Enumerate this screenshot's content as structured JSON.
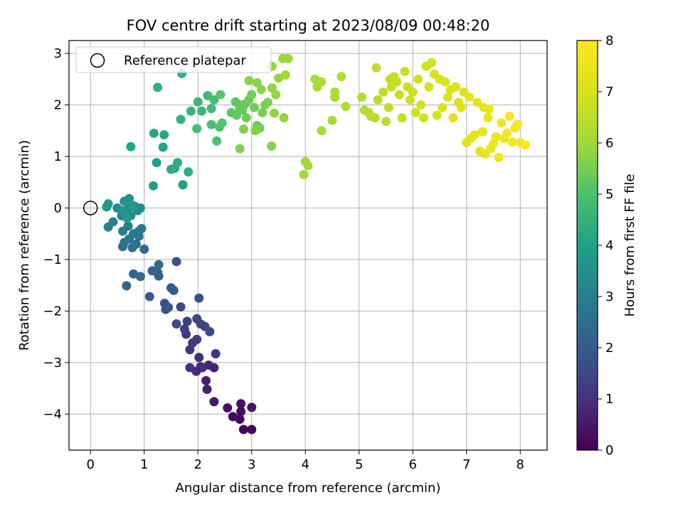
{
  "chart_data": {
    "type": "scatter",
    "title": "FOV centre drift starting at 2023/08/09 00:48:20",
    "xlabel": "Angular distance from reference (arcmin)",
    "ylabel": "Rotation from reference (arcmin)",
    "xlim": [
      -0.4,
      8.5
    ],
    "ylim": [
      -4.7,
      3.25
    ],
    "xticks": [
      0,
      1,
      2,
      3,
      4,
      5,
      6,
      7,
      8
    ],
    "xtick_labels": [
      "0",
      "1",
      "2",
      "3",
      "4",
      "5",
      "6",
      "7",
      "8"
    ],
    "yticks": [
      -4,
      -3,
      -2,
      -1,
      0,
      1,
      2,
      3
    ],
    "ytick_labels": [
      "−4",
      "−3",
      "−2",
      "−1",
      "0",
      "1",
      "2",
      "3"
    ],
    "grid": true,
    "legend": {
      "placement": "top-left",
      "entries": [
        "Reference platepar"
      ]
    },
    "colorbar": {
      "label": "Hours from first FF file",
      "range": [
        0,
        8
      ],
      "ticks": [
        0,
        1,
        2,
        3,
        4,
        5,
        6,
        7,
        8
      ],
      "tick_labels": [
        "0",
        "1",
        "2",
        "3",
        "4",
        "5",
        "6",
        "7",
        "8"
      ],
      "colormap": "viridis"
    },
    "reference_point": {
      "x": 0,
      "y": 0
    },
    "points": [
      {
        "x": 3.0,
        "y": -4.3,
        "h": 0.05
      },
      {
        "x": 2.85,
        "y": -4.3,
        "h": 0.1
      },
      {
        "x": 2.78,
        "y": -4.1,
        "h": 0.15
      },
      {
        "x": 2.65,
        "y": -4.05,
        "h": 0.2
      },
      {
        "x": 2.8,
        "y": -3.95,
        "h": 0.25
      },
      {
        "x": 2.8,
        "y": -3.8,
        "h": 0.3
      },
      {
        "x": 2.55,
        "y": -3.88,
        "h": 0.35
      },
      {
        "x": 3.0,
        "y": -3.87,
        "h": 0.4
      },
      {
        "x": 2.3,
        "y": -3.76,
        "h": 0.5
      },
      {
        "x": 2.17,
        "y": -3.52,
        "h": 0.6
      },
      {
        "x": 2.15,
        "y": -3.35,
        "h": 0.65
      },
      {
        "x": 2.3,
        "y": -3.1,
        "h": 0.7
      },
      {
        "x": 2.2,
        "y": -3.05,
        "h": 0.75
      },
      {
        "x": 2.08,
        "y": -3.1,
        "h": 0.8
      },
      {
        "x": 1.97,
        "y": -3.17,
        "h": 0.85
      },
      {
        "x": 2.05,
        "y": -3.08,
        "h": 0.9
      },
      {
        "x": 2.02,
        "y": -2.9,
        "h": 0.95
      },
      {
        "x": 1.85,
        "y": -3.1,
        "h": 1.0
      },
      {
        "x": 2.33,
        "y": -2.83,
        "h": 1.05
      },
      {
        "x": 1.85,
        "y": -2.75,
        "h": 1.1
      },
      {
        "x": 1.9,
        "y": -2.62,
        "h": 1.15
      },
      {
        "x": 1.98,
        "y": -2.55,
        "h": 1.2
      },
      {
        "x": 1.78,
        "y": -2.45,
        "h": 1.25
      },
      {
        "x": 1.75,
        "y": -2.35,
        "h": 1.3
      },
      {
        "x": 1.8,
        "y": -2.2,
        "h": 1.35
      },
      {
        "x": 1.98,
        "y": -2.15,
        "h": 1.4
      },
      {
        "x": 2.05,
        "y": -2.25,
        "h": 1.45
      },
      {
        "x": 2.13,
        "y": -2.3,
        "h": 1.5
      },
      {
        "x": 2.22,
        "y": -2.4,
        "h": 1.55
      },
      {
        "x": 1.6,
        "y": -2.25,
        "h": 1.6
      },
      {
        "x": 1.68,
        "y": -1.92,
        "h": 1.65
      },
      {
        "x": 2.02,
        "y": -1.75,
        "h": 1.7
      },
      {
        "x": 1.6,
        "y": -1.04,
        "h": 1.75
      },
      {
        "x": 1.38,
        "y": -1.85,
        "h": 1.8
      },
      {
        "x": 1.4,
        "y": -1.97,
        "h": 1.85
      },
      {
        "x": 1.45,
        "y": -1.93,
        "h": 1.9
      },
      {
        "x": 1.5,
        "y": -1.55,
        "h": 1.95
      },
      {
        "x": 1.55,
        "y": -1.6,
        "h": 2.0
      },
      {
        "x": 1.1,
        "y": -1.72,
        "h": 2.05
      },
      {
        "x": 1.15,
        "y": -1.22,
        "h": 2.1
      },
      {
        "x": 1.25,
        "y": -1.25,
        "h": 2.15
      },
      {
        "x": 1.27,
        "y": -1.32,
        "h": 2.2
      },
      {
        "x": 0.67,
        "y": -1.51,
        "h": 2.25
      },
      {
        "x": 0.8,
        "y": -1.28,
        "h": 2.3
      },
      {
        "x": 0.93,
        "y": -1.33,
        "h": 2.35
      },
      {
        "x": 1.27,
        "y": -1.1,
        "h": 2.4
      },
      {
        "x": 1.0,
        "y": -0.8,
        "h": 2.45
      },
      {
        "x": 0.6,
        "y": -0.75,
        "h": 2.5
      },
      {
        "x": 0.78,
        "y": -0.77,
        "h": 2.55
      },
      {
        "x": 0.85,
        "y": -0.7,
        "h": 2.6
      },
      {
        "x": 0.63,
        "y": -0.67,
        "h": 2.65
      },
      {
        "x": 0.72,
        "y": -0.6,
        "h": 2.7
      },
      {
        "x": 0.9,
        "y": -0.55,
        "h": 2.75
      },
      {
        "x": 0.8,
        "y": -0.5,
        "h": 2.8
      },
      {
        "x": 0.9,
        "y": -0.45,
        "h": 2.85
      },
      {
        "x": 0.95,
        "y": -0.4,
        "h": 2.9
      },
      {
        "x": 0.6,
        "y": -0.45,
        "h": 2.95
      },
      {
        "x": 0.7,
        "y": -0.35,
        "h": 3.0
      },
      {
        "x": 0.42,
        "y": -0.27,
        "h": 3.05
      },
      {
        "x": 0.33,
        "y": -0.37,
        "h": 3.1
      },
      {
        "x": 0.58,
        "y": -0.15,
        "h": 3.15
      },
      {
        "x": 0.75,
        "y": -0.15,
        "h": 3.2
      },
      {
        "x": 0.5,
        "y": 0.0,
        "h": 3.25
      },
      {
        "x": 0.72,
        "y": 0.0,
        "h": 3.3
      },
      {
        "x": 0.83,
        "y": 0.03,
        "h": 3.35
      },
      {
        "x": 0.88,
        "y": -0.05,
        "h": 3.4
      },
      {
        "x": 0.93,
        "y": 0.0,
        "h": 3.45
      },
      {
        "x": 0.63,
        "y": 0.13,
        "h": 3.5
      },
      {
        "x": 0.72,
        "y": 0.18,
        "h": 3.55
      },
      {
        "x": 0.65,
        "y": -0.1,
        "h": 3.6
      },
      {
        "x": 0.6,
        "y": -0.05,
        "h": 3.65
      },
      {
        "x": 0.33,
        "y": 0.08,
        "h": 3.7
      },
      {
        "x": 0.3,
        "y": 0.02,
        "h": 3.75
      },
      {
        "x": 0.78,
        "y": 0.05,
        "h": 3.8
      },
      {
        "x": 0.68,
        "y": -0.2,
        "h": 3.85
      },
      {
        "x": 1.17,
        "y": 0.43,
        "h": 3.9
      },
      {
        "x": 1.72,
        "y": 0.45,
        "h": 3.95
      },
      {
        "x": 1.23,
        "y": 0.88,
        "h": 4.0
      },
      {
        "x": 0.75,
        "y": 1.19,
        "h": 4.05
      },
      {
        "x": 1.35,
        "y": 1.18,
        "h": 4.1
      },
      {
        "x": 1.18,
        "y": 1.45,
        "h": 4.15
      },
      {
        "x": 1.37,
        "y": 1.42,
        "h": 4.2
      },
      {
        "x": 1.5,
        "y": 0.75,
        "h": 4.25
      },
      {
        "x": 1.57,
        "y": 0.77,
        "h": 4.3
      },
      {
        "x": 1.62,
        "y": 0.88,
        "h": 4.35
      },
      {
        "x": 1.82,
        "y": 0.7,
        "h": 4.4
      },
      {
        "x": 1.25,
        "y": 2.34,
        "h": 4.45
      },
      {
        "x": 1.7,
        "y": 2.61,
        "h": 4.5
      },
      {
        "x": 1.68,
        "y": 1.72,
        "h": 4.55
      },
      {
        "x": 1.87,
        "y": 1.88,
        "h": 4.6
      },
      {
        "x": 2.0,
        "y": 2.06,
        "h": 4.65
      },
      {
        "x": 2.07,
        "y": 1.88,
        "h": 4.7
      },
      {
        "x": 2.18,
        "y": 2.18,
        "h": 4.75
      },
      {
        "x": 2.25,
        "y": 1.93,
        "h": 4.8
      },
      {
        "x": 2.3,
        "y": 2.1,
        "h": 4.85
      },
      {
        "x": 1.98,
        "y": 1.54,
        "h": 4.9
      },
      {
        "x": 2.25,
        "y": 1.62,
        "h": 4.95
      },
      {
        "x": 2.35,
        "y": 1.3,
        "h": 5.0
      },
      {
        "x": 2.4,
        "y": 1.57,
        "h": 5.05
      },
      {
        "x": 2.45,
        "y": 1.65,
        "h": 5.1
      },
      {
        "x": 2.42,
        "y": 2.2,
        "h": 5.15
      },
      {
        "x": 2.62,
        "y": 1.85,
        "h": 5.2
      },
      {
        "x": 2.7,
        "y": 2.06,
        "h": 5.22
      },
      {
        "x": 2.72,
        "y": 1.8,
        "h": 5.25
      },
      {
        "x": 2.78,
        "y": 1.93,
        "h": 5.28
      },
      {
        "x": 2.8,
        "y": 2.0,
        "h": 5.3
      },
      {
        "x": 2.83,
        "y": 1.9,
        "h": 5.33
      },
      {
        "x": 2.88,
        "y": 2.02,
        "h": 5.35
      },
      {
        "x": 2.9,
        "y": 1.75,
        "h": 5.38
      },
      {
        "x": 2.95,
        "y": 2.1,
        "h": 5.4
      },
      {
        "x": 3.0,
        "y": 2.2,
        "h": 5.42
      },
      {
        "x": 3.05,
        "y": 1.95,
        "h": 5.45
      },
      {
        "x": 3.1,
        "y": 1.6,
        "h": 5.48
      },
      {
        "x": 3.15,
        "y": 1.55,
        "h": 5.5
      },
      {
        "x": 3.2,
        "y": 1.85,
        "h": 5.52
      },
      {
        "x": 3.25,
        "y": 2.0,
        "h": 5.55
      },
      {
        "x": 3.3,
        "y": 2.05,
        "h": 5.58
      },
      {
        "x": 2.78,
        "y": 1.15,
        "h": 5.6
      },
      {
        "x": 2.85,
        "y": 1.53,
        "h": 5.62
      },
      {
        "x": 3.07,
        "y": 1.5,
        "h": 5.65
      },
      {
        "x": 3.37,
        "y": 1.2,
        "h": 5.68
      },
      {
        "x": 2.95,
        "y": 2.47,
        "h": 5.7
      },
      {
        "x": 3.1,
        "y": 2.43,
        "h": 5.72
      },
      {
        "x": 3.18,
        "y": 2.3,
        "h": 5.75
      },
      {
        "x": 3.38,
        "y": 2.33,
        "h": 5.78
      },
      {
        "x": 3.42,
        "y": 1.84,
        "h": 5.8
      },
      {
        "x": 3.6,
        "y": 1.75,
        "h": 5.82
      },
      {
        "x": 3.45,
        "y": 2.2,
        "h": 5.85
      },
      {
        "x": 3.5,
        "y": 2.52,
        "h": 5.88
      },
      {
        "x": 3.38,
        "y": 2.75,
        "h": 5.9
      },
      {
        "x": 3.58,
        "y": 2.9,
        "h": 5.92
      },
      {
        "x": 3.68,
        "y": 2.9,
        "h": 5.95
      },
      {
        "x": 3.63,
        "y": 2.58,
        "h": 5.97
      },
      {
        "x": 3.97,
        "y": 0.65,
        "h": 6.0
      },
      {
        "x": 4.0,
        "y": 0.9,
        "h": 6.02
      },
      {
        "x": 4.05,
        "y": 0.82,
        "h": 6.05
      },
      {
        "x": 4.18,
        "y": 2.5,
        "h": 6.08
      },
      {
        "x": 4.22,
        "y": 2.35,
        "h": 6.1
      },
      {
        "x": 4.3,
        "y": 2.45,
        "h": 6.12
      },
      {
        "x": 4.3,
        "y": 1.5,
        "h": 6.15
      },
      {
        "x": 4.5,
        "y": 1.7,
        "h": 6.18
      },
      {
        "x": 4.55,
        "y": 2.15,
        "h": 6.2
      },
      {
        "x": 4.55,
        "y": 2.25,
        "h": 6.22
      },
      {
        "x": 4.67,
        "y": 2.55,
        "h": 6.25
      },
      {
        "x": 4.75,
        "y": 1.97,
        "h": 6.28
      },
      {
        "x": 5.05,
        "y": 2.15,
        "h": 6.3
      },
      {
        "x": 5.1,
        "y": 1.9,
        "h": 6.32
      },
      {
        "x": 5.18,
        "y": 1.85,
        "h": 6.35
      },
      {
        "x": 5.22,
        "y": 1.78,
        "h": 6.38
      },
      {
        "x": 5.3,
        "y": 1.75,
        "h": 6.4
      },
      {
        "x": 5.32,
        "y": 2.72,
        "h": 6.42
      },
      {
        "x": 5.35,
        "y": 2.1,
        "h": 6.45
      },
      {
        "x": 5.45,
        "y": 2.25,
        "h": 6.48
      },
      {
        "x": 5.5,
        "y": 1.68,
        "h": 6.5
      },
      {
        "x": 5.55,
        "y": 1.95,
        "h": 6.52
      },
      {
        "x": 5.58,
        "y": 2.5,
        "h": 6.55
      },
      {
        "x": 5.6,
        "y": 2.35,
        "h": 6.58
      },
      {
        "x": 5.65,
        "y": 2.55,
        "h": 6.6
      },
      {
        "x": 5.7,
        "y": 2.45,
        "h": 6.62
      },
      {
        "x": 5.75,
        "y": 2.2,
        "h": 6.65
      },
      {
        "x": 5.8,
        "y": 1.75,
        "h": 6.68
      },
      {
        "x": 5.85,
        "y": 2.65,
        "h": 6.7
      },
      {
        "x": 5.9,
        "y": 2.35,
        "h": 6.72
      },
      {
        "x": 5.95,
        "y": 2.1,
        "h": 6.75
      },
      {
        "x": 6.0,
        "y": 2.25,
        "h": 6.78
      },
      {
        "x": 6.05,
        "y": 1.85,
        "h": 6.8
      },
      {
        "x": 6.1,
        "y": 2.5,
        "h": 6.82
      },
      {
        "x": 6.15,
        "y": 2.0,
        "h": 6.85
      },
      {
        "x": 6.2,
        "y": 1.75,
        "h": 6.88
      },
      {
        "x": 6.25,
        "y": 2.75,
        "h": 6.9
      },
      {
        "x": 6.3,
        "y": 2.35,
        "h": 6.92
      },
      {
        "x": 6.35,
        "y": 2.82,
        "h": 6.95
      },
      {
        "x": 6.4,
        "y": 2.6,
        "h": 6.97
      },
      {
        "x": 6.45,
        "y": 1.8,
        "h": 7.0
      },
      {
        "x": 6.5,
        "y": 2.5,
        "h": 7.02
      },
      {
        "x": 6.55,
        "y": 1.95,
        "h": 7.05
      },
      {
        "x": 6.6,
        "y": 2.45,
        "h": 7.08
      },
      {
        "x": 6.65,
        "y": 2.15,
        "h": 7.1
      },
      {
        "x": 6.7,
        "y": 2.3,
        "h": 7.12
      },
      {
        "x": 6.75,
        "y": 1.75,
        "h": 7.15
      },
      {
        "x": 6.8,
        "y": 2.35,
        "h": 7.18
      },
      {
        "x": 6.85,
        "y": 2.05,
        "h": 7.2
      },
      {
        "x": 6.9,
        "y": 1.95,
        "h": 7.22
      },
      {
        "x": 6.95,
        "y": 2.25,
        "h": 7.25
      },
      {
        "x": 7.0,
        "y": 1.27,
        "h": 7.28
      },
      {
        "x": 7.05,
        "y": 2.15,
        "h": 7.3
      },
      {
        "x": 7.08,
        "y": 1.35,
        "h": 7.32
      },
      {
        "x": 7.15,
        "y": 1.42,
        "h": 7.35
      },
      {
        "x": 7.2,
        "y": 2.05,
        "h": 7.38
      },
      {
        "x": 7.25,
        "y": 1.1,
        "h": 7.4
      },
      {
        "x": 7.3,
        "y": 1.48,
        "h": 7.42
      },
      {
        "x": 7.32,
        "y": 1.95,
        "h": 7.45
      },
      {
        "x": 7.35,
        "y": 1.05,
        "h": 7.48
      },
      {
        "x": 7.4,
        "y": 1.75,
        "h": 7.5
      },
      {
        "x": 7.42,
        "y": 1.92,
        "h": 7.52
      },
      {
        "x": 7.45,
        "y": 1.15,
        "h": 7.55
      },
      {
        "x": 7.5,
        "y": 1.25,
        "h": 7.58
      },
      {
        "x": 7.55,
        "y": 1.38,
        "h": 7.6
      },
      {
        "x": 7.6,
        "y": 0.98,
        "h": 7.62
      },
      {
        "x": 7.65,
        "y": 1.65,
        "h": 7.65
      },
      {
        "x": 7.7,
        "y": 1.35,
        "h": 7.68
      },
      {
        "x": 7.75,
        "y": 1.45,
        "h": 7.7
      },
      {
        "x": 7.8,
        "y": 1.78,
        "h": 7.72
      },
      {
        "x": 7.85,
        "y": 1.28,
        "h": 7.75
      },
      {
        "x": 7.9,
        "y": 1.55,
        "h": 7.78
      },
      {
        "x": 7.95,
        "y": 1.62,
        "h": 7.8
      },
      {
        "x": 8.0,
        "y": 1.27,
        "h": 7.85
      },
      {
        "x": 8.1,
        "y": 1.22,
        "h": 7.9
      }
    ]
  }
}
